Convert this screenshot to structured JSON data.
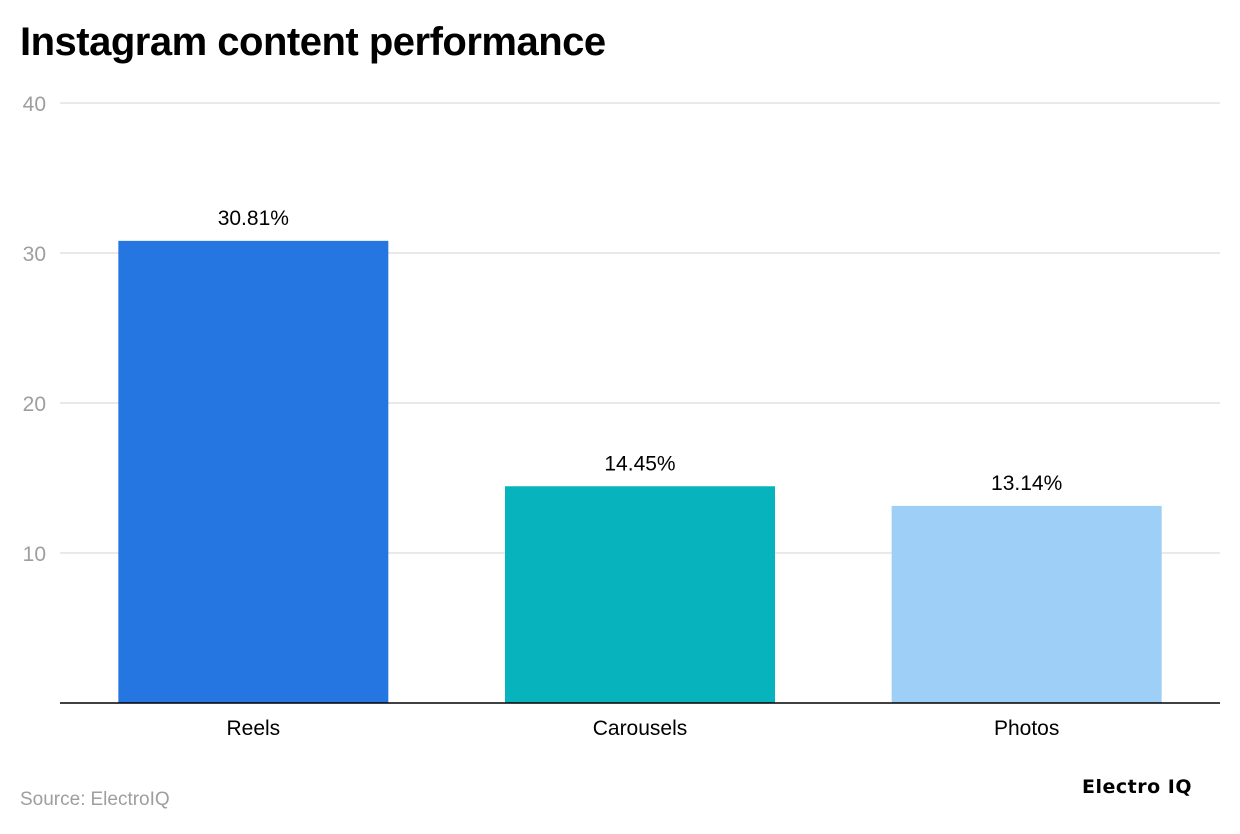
{
  "chart_data": {
    "type": "bar",
    "title": "Instagram content performance",
    "categories": [
      "Reels",
      "Carousels",
      "Photos"
    ],
    "values": [
      30.81,
      14.45,
      13.14
    ],
    "data_labels": [
      "30.81%",
      "14.45%",
      "13.14%"
    ],
    "colors": [
      "#2576e0",
      "#07b3bd",
      "#9dcff7"
    ],
    "xlabel": "",
    "ylabel": "",
    "ylim": [
      0,
      40
    ],
    "y_ticks": [
      10,
      20,
      30,
      40
    ],
    "grid": true,
    "legend": "none"
  },
  "footer": {
    "source_label": "Source:",
    "source_name": "ElectroIQ",
    "brand": "Electro IQ"
  }
}
